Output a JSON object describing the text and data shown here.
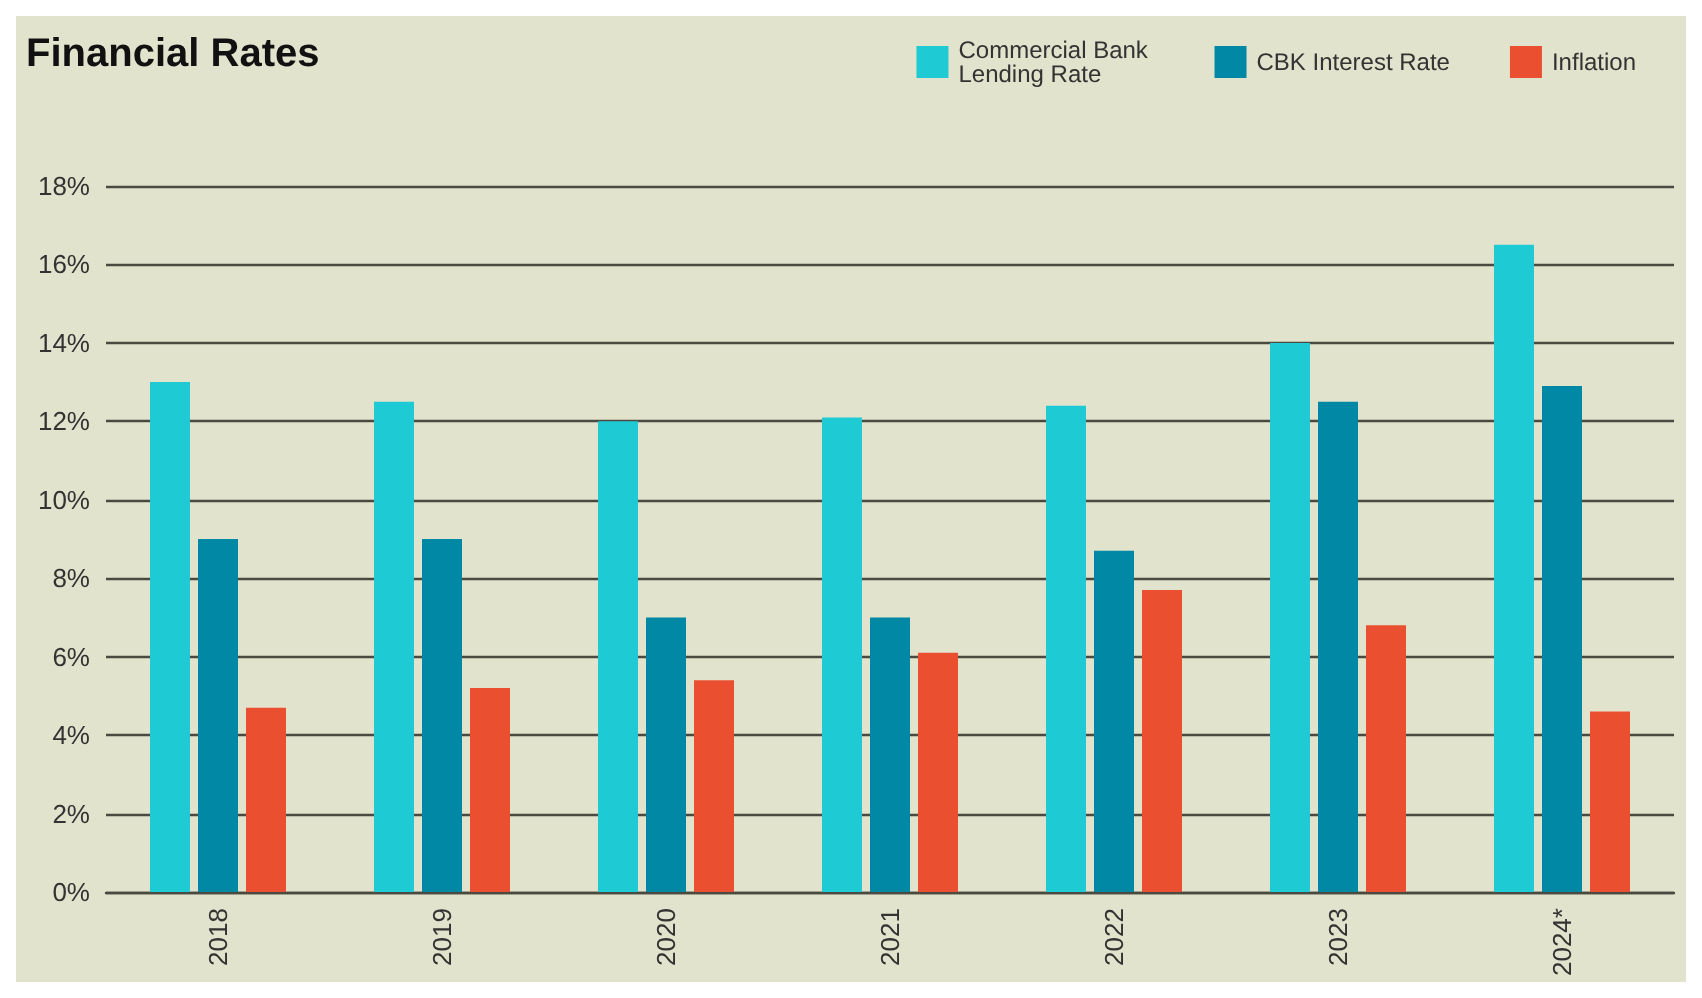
{
  "chart_data": {
    "type": "bar",
    "title": "Financial Rates",
    "categories": [
      "2018",
      "2019",
      "2020",
      "2021",
      "2022",
      "2023",
      "2024*"
    ],
    "series": [
      {
        "name": "Commercial Bank Lending Rate",
        "color": "#1ecbd4",
        "values": [
          13,
          12.5,
          12,
          12.1,
          12.4,
          14,
          16.5
        ]
      },
      {
        "name": "CBK Interest Rate",
        "color": "#0088a4",
        "values": [
          9,
          9,
          7,
          7,
          8.7,
          12.5,
          12.9
        ]
      },
      {
        "name": "Inflation",
        "color": "#ea5030",
        "values": [
          4.7,
          5.2,
          5.4,
          6.1,
          7.7,
          6.8,
          4.6
        ]
      }
    ],
    "ylim": [
      0,
      18
    ],
    "yticks": [
      {
        "value": 0,
        "label": "0%"
      },
      {
        "value": 2,
        "label": "2%"
      },
      {
        "value": 4,
        "label": "4%"
      },
      {
        "value": 6,
        "label": "6%"
      },
      {
        "value": 8,
        "label": "8%"
      },
      {
        "value": 10,
        "label": "10%"
      },
      {
        "value": 12,
        "label": "12%"
      },
      {
        "value": 14,
        "label": "14%"
      },
      {
        "value": 16,
        "label": "16%"
      },
      {
        "value": 18,
        "label": "18%"
      }
    ],
    "grid": "y",
    "legend": "top right"
  }
}
